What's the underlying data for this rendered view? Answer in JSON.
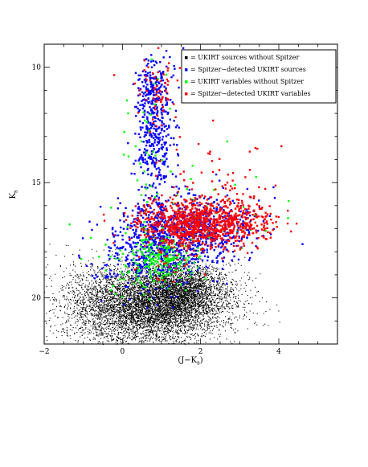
{
  "chart_data": {
    "type": "scatter",
    "xlabel": "(J−K",
    "xlabel_sub": "s",
    "xlabel_close": ")",
    "ylabel": "K",
    "ylabel_sub": "s",
    "xlim": [
      -2,
      5.5
    ],
    "ylim": [
      22,
      9
    ],
    "y_inverted": true,
    "x_ticks": [
      -2,
      0,
      2,
      4
    ],
    "y_ticks": [
      10,
      15,
      20
    ],
    "grid": false,
    "legend_position": "top-right",
    "series": [
      {
        "name": "= UKIRT sources without Spitzer",
        "color": "#000000",
        "marker": "dot",
        "clusters": [
          {
            "n": 5200,
            "cx": 0.9,
            "cy": 20.2,
            "sx": 0.9,
            "sy": 0.85
          },
          {
            "n": 1300,
            "cx": 1.6,
            "cy": 19.6,
            "sx": 0.55,
            "sy": 0.5
          },
          {
            "n": 900,
            "cx": 0.2,
            "cy": 20.5,
            "sx": 0.9,
            "sy": 0.8
          },
          {
            "n": 500,
            "cx": -0.9,
            "cy": 20.3,
            "sx": 0.6,
            "sy": 0.9
          }
        ]
      },
      {
        "name": "= Spitzer−detected UKIRT sources",
        "color": "#0000ff",
        "marker": "square",
        "clusters": [
          {
            "n": 380,
            "cx": 0.85,
            "cy": 13.0,
            "sx": 0.25,
            "sy": 1.6
          },
          {
            "n": 110,
            "cx": 0.75,
            "cy": 10.9,
            "sx": 0.15,
            "sy": 0.65
          },
          {
            "n": 700,
            "cx": 1.2,
            "cy": 17.4,
            "sx": 0.75,
            "sy": 0.9
          },
          {
            "n": 260,
            "cx": 2.3,
            "cy": 17.0,
            "sx": 0.65,
            "sy": 0.6
          },
          {
            "n": 120,
            "cx": 0.4,
            "cy": 18.3,
            "sx": 0.55,
            "sy": 0.8
          }
        ]
      },
      {
        "name": "= UKIRT variables without Spitzer",
        "color": "#00ff00",
        "marker": "square",
        "clusters": [
          {
            "n": 230,
            "cx": 1.0,
            "cy": 18.3,
            "sx": 0.45,
            "sy": 0.65
          },
          {
            "n": 40,
            "cx": 0.7,
            "cy": 14.0,
            "sx": 0.35,
            "sy": 2.0
          },
          {
            "n": 35,
            "cx": 2.3,
            "cy": 16.2,
            "sx": 1.1,
            "sy": 1.1
          },
          {
            "n": 20,
            "cx": 0.0,
            "cy": 18.6,
            "sx": 0.7,
            "sy": 0.9
          }
        ]
      },
      {
        "name": "= Spitzer−detected UKIRT variables",
        "color": "#ff0000",
        "marker": "square",
        "clusters": [
          {
            "n": 850,
            "cx": 1.85,
            "cy": 16.8,
            "sx": 0.7,
            "sy": 0.55
          },
          {
            "n": 170,
            "cx": 3.0,
            "cy": 16.7,
            "sx": 0.55,
            "sy": 0.45
          },
          {
            "n": 65,
            "cx": 1.0,
            "cy": 10.9,
            "sx": 0.3,
            "sy": 0.75
          },
          {
            "n": 45,
            "cx": 2.4,
            "cy": 14.6,
            "sx": 0.8,
            "sy": 0.8
          },
          {
            "n": 30,
            "cx": 1.1,
            "cy": 18.1,
            "sx": 0.45,
            "sy": 0.5
          }
        ]
      }
    ]
  }
}
